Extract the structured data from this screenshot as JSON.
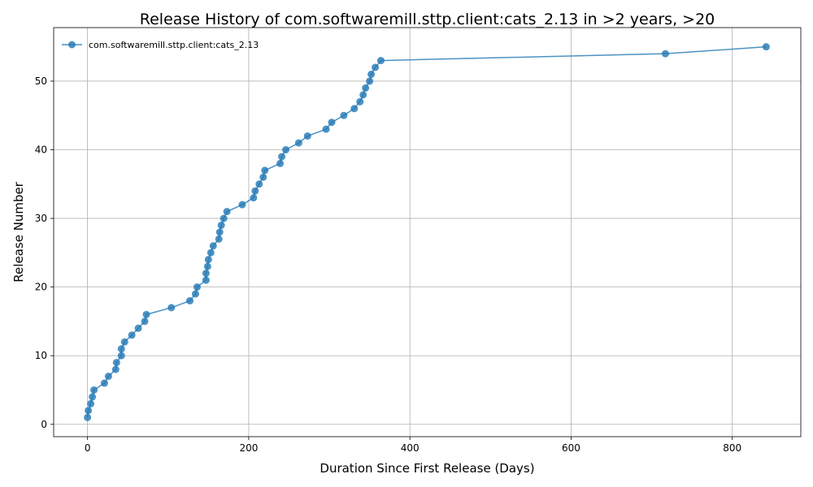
{
  "chart_data": {
    "type": "line",
    "title": "Release History of com.softwaremill.sttp.client:cats_2.13 in >2 years, >20",
    "xlabel": "Duration Since First Release (Days)",
    "ylabel": "Release Number",
    "xlim": [
      -42,
      885
    ],
    "ylim": [
      -1.8,
      57.8
    ],
    "xticks": [
      0,
      200,
      400,
      600,
      800
    ],
    "yticks": [
      0,
      10,
      20,
      30,
      40,
      50
    ],
    "grid": true,
    "legend_position": "top-left",
    "series_color": "#1f77b4",
    "series": [
      {
        "name": "com.softwaremill.sttp.client:cats_2.13",
        "x": [
          0,
          1,
          4,
          6,
          8,
          21,
          26,
          35,
          36,
          42,
          42,
          46,
          55,
          63,
          71,
          73,
          104,
          127,
          134,
          136,
          147,
          147,
          149,
          150,
          153,
          156,
          163,
          164,
          166,
          169,
          173,
          192,
          206,
          208,
          213,
          218,
          220,
          239,
          241,
          246,
          262,
          273,
          296,
          303,
          318,
          331,
          338,
          342,
          345,
          350,
          352,
          357,
          364,
          717,
          842
        ],
        "y": [
          1,
          2,
          3,
          4,
          5,
          6,
          7,
          8,
          9,
          10,
          11,
          12,
          13,
          14,
          15,
          16,
          17,
          18,
          19,
          20,
          21,
          22,
          23,
          24,
          25,
          26,
          27,
          28,
          29,
          30,
          31,
          32,
          33,
          34,
          35,
          36,
          37,
          38,
          39,
          40,
          41,
          42,
          43,
          44,
          45,
          46,
          47,
          48,
          49,
          50,
          51,
          52,
          53,
          54,
          55
        ]
      }
    ]
  }
}
